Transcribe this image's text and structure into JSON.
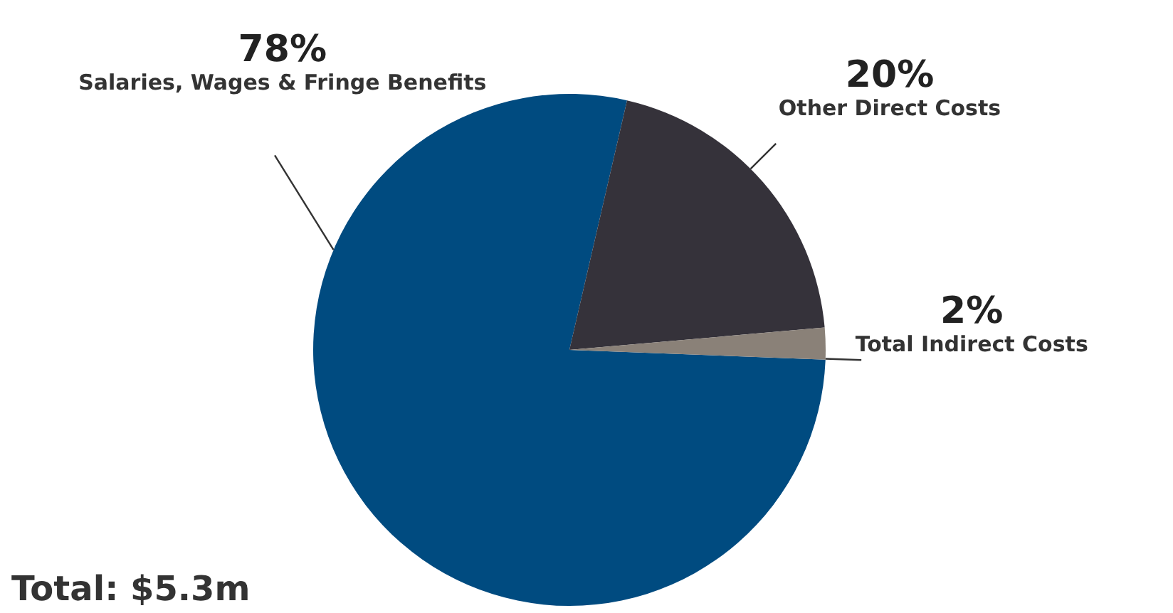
{
  "chart_data": {
    "type": "pie",
    "categories": [
      "Salaries, Wages & Fringe Benefits",
      "Other Direct Costs",
      "Total Indirect Costs"
    ],
    "values": [
      78,
      20,
      2
    ],
    "colors": [
      "#004b80",
      "#35323a",
      "#8a8178"
    ],
    "value_labels": [
      "78%",
      "20%",
      "2%"
    ],
    "annotations": [
      "Total: $5.3m"
    ]
  }
}
